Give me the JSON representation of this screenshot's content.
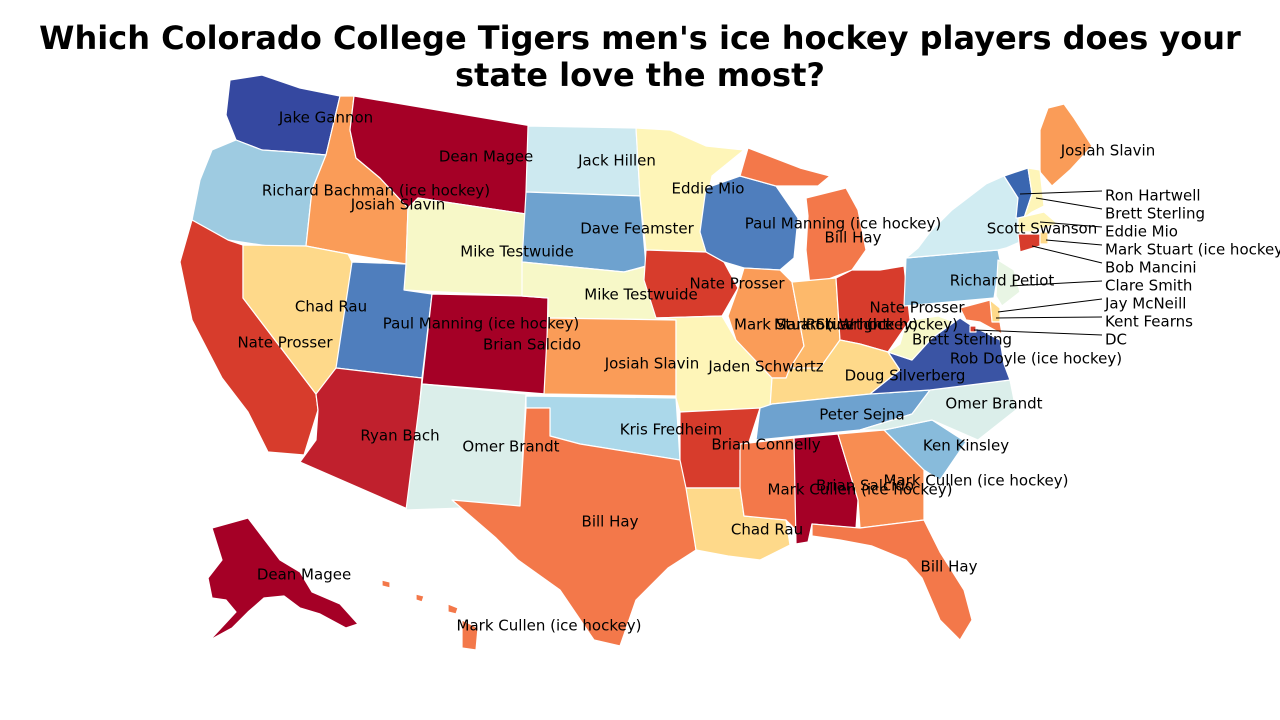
{
  "title_line1": "Which Colorado College Tigers men's ice hockey players does your",
  "title_line2": "state love the most?",
  "colors": {
    "dark_red": "#a50026",
    "red": "#d73027",
    "crimson": "#c0202d",
    "orange": "#f46d43",
    "light_orange": "#fa9c58",
    "peach": "#fdae61",
    "pale_orange": "#fed98a",
    "pale_yellow": "#fef5b8",
    "cream": "#f7f8c8",
    "pale_cyan": "#dbeeea",
    "light_blue": "#cde9f0",
    "sky": "#a6d4e6",
    "blue": "#74add1",
    "mid_blue": "#4f7ebd",
    "dark_blue": "#3548a0"
  },
  "states": [
    {
      "code": "WA",
      "player": "Jake Gannon",
      "color": "#3548a0"
    },
    {
      "code": "OR",
      "player": "Richard Bachman (ice hockey)",
      "color": "#9ecbe1"
    },
    {
      "code": "CA",
      "player": "Nate Prosser",
      "color": "#d73c2c"
    },
    {
      "code": "ID",
      "player": "Josiah Slavin",
      "color": "#fa9c58"
    },
    {
      "code": "NV",
      "player": "Chad Rau",
      "color": "#fed98a"
    },
    {
      "code": "MT",
      "player": "Dean Magee",
      "color": "#a50026"
    },
    {
      "code": "WY",
      "player": "Mike Testwuide",
      "color": "#f7f8c8"
    },
    {
      "code": "UT",
      "player": "Paul Manning (ice hockey)",
      "color": "#4f7ebd"
    },
    {
      "code": "AZ",
      "player": "Ryan Bach",
      "color": "#c0202d"
    },
    {
      "code": "CO",
      "player": "Brian Salcido",
      "color": "#a50026"
    },
    {
      "code": "NM",
      "player": "Omer Brandt",
      "color": "#dbeeea"
    },
    {
      "code": "ND",
      "player": "Jack Hillen",
      "color": "#cde9f0"
    },
    {
      "code": "SD",
      "player": "Dave Feamster",
      "color": "#6ea2cf"
    },
    {
      "code": "NE",
      "player": "Mike Testwuide",
      "color": "#f7f8c8"
    },
    {
      "code": "KS",
      "player": "Josiah Slavin",
      "color": "#fa9c58"
    },
    {
      "code": "OK",
      "player": "Kris Fredheim",
      "color": "#abd8ea"
    },
    {
      "code": "TX",
      "player": "Bill Hay",
      "color": "#f3784a"
    },
    {
      "code": "MN",
      "player": "Eddie Mio",
      "color": "#fef5b8"
    },
    {
      "code": "IA",
      "player": "Nate Prosser",
      "color": "#d73c2c"
    },
    {
      "code": "MO",
      "player": "Jaden Schwartz",
      "color": "#fef5b8"
    },
    {
      "code": "AR",
      "player": "Brian Connelly",
      "color": "#d73c2c"
    },
    {
      "code": "LA",
      "player": "Chad Rau",
      "color": "#fed98a"
    },
    {
      "code": "WI",
      "player": "Paul Manning (ice hockey)",
      "color": "#4f7ebd"
    },
    {
      "code": "IL",
      "player": "Mark Stuart (ice hockey)",
      "color": "#fa9c58"
    },
    {
      "code": "MI",
      "player": "Bill Hay",
      "color": "#f3784a"
    },
    {
      "code": "IN",
      "player": "Rob Wright",
      "color": "#fdb96b"
    },
    {
      "code": "OH",
      "player": "Nate Prosser",
      "color": "#d73c2c"
    },
    {
      "code": "KY",
      "player": "Doug Silverberg",
      "color": "#fed98a"
    },
    {
      "code": "TN",
      "player": "Peter Sejna",
      "color": "#6ea2cf"
    },
    {
      "code": "MS",
      "player": "Mark Cullen (ice hockey)",
      "color": "#f3784a"
    },
    {
      "code": "AL",
      "player": "Brian Salcido",
      "color": "#a50026"
    },
    {
      "code": "GA",
      "player": "Mark Cullen (ice hockey)",
      "color": "#f88d52"
    },
    {
      "code": "FL",
      "player": "Bill Hay",
      "color": "#f3784a"
    },
    {
      "code": "SC",
      "player": "Ken Kinsley",
      "color": "#88bbdb"
    },
    {
      "code": "NC",
      "player": "Omer Brandt",
      "color": "#dbeeea"
    },
    {
      "code": "VA",
      "player": "Rob Doyle (ice hockey)",
      "color": "#3a54a4"
    },
    {
      "code": "WV",
      "player": "Brett Sterling",
      "color": "#f7f8c8"
    },
    {
      "code": "PA",
      "player": "Richard Petiot",
      "color": "#88bbdb"
    },
    {
      "code": "NY",
      "player": "Scott Swanson",
      "color": "#d1ecf2"
    },
    {
      "code": "ME",
      "player": "Josiah Slavin",
      "color": "#fa9c58"
    },
    {
      "code": "AK",
      "player": "Dean Magee",
      "color": "#a50026"
    },
    {
      "code": "HI",
      "player": "Mark Cullen (ice hockey)",
      "color": "#f3784a"
    },
    {
      "code": "VT",
      "player": "Ron Hartwell",
      "color": "#3a66b0"
    },
    {
      "code": "NH",
      "player": "Brett Sterling",
      "color": "#fef5b8"
    },
    {
      "code": "MA",
      "player": "Eddie Mio",
      "color": "#fef5b8"
    },
    {
      "code": "CT",
      "player": "Bob Mancini",
      "color": "#d73c2c"
    },
    {
      "code": "RI",
      "player": "Mark Stuart (ice hockey)",
      "color": "#fed98a"
    },
    {
      "code": "NJ",
      "player": "Clare Smith",
      "color": "#e8f5e4"
    },
    {
      "code": "DE",
      "player": "Jay McNeill",
      "color": "#fed98a"
    },
    {
      "code": "MD",
      "player": "Kent Fearns",
      "color": "#f3784a"
    },
    {
      "code": "DC",
      "player": "DC",
      "color": "#d73c2c"
    }
  ],
  "overlap_label": "Mark Stuart (ice hockey)"
}
